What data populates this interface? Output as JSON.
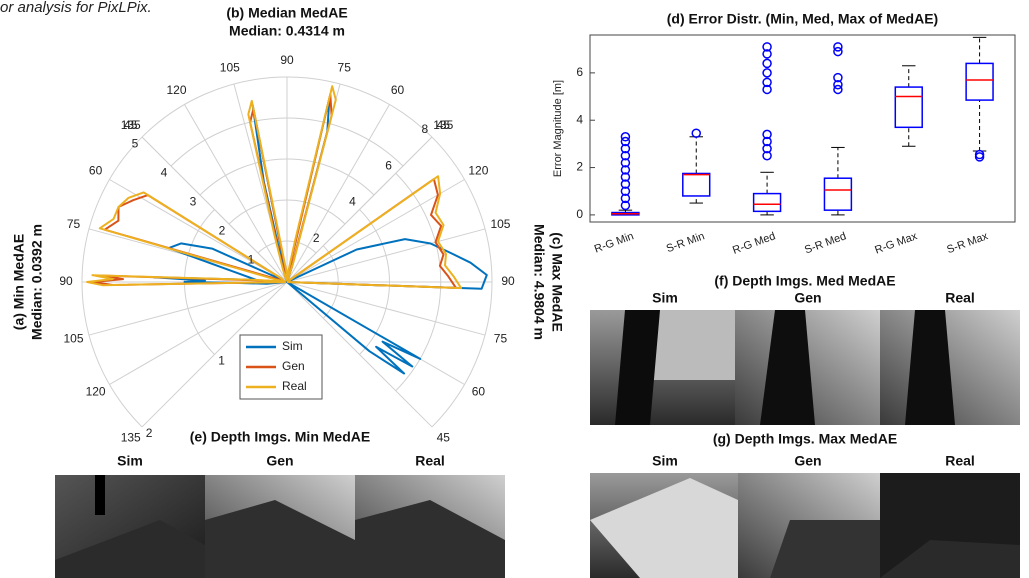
{
  "caption_fragment": "or analysis for PixLPix.",
  "chart_data": [
    {
      "type": "polar",
      "title": "(a) Min MedAE",
      "subtitle": "Median: 0.0392 m",
      "x": [
        45,
        55,
        58,
        62,
        66,
        70,
        74,
        78,
        82,
        86,
        88,
        89,
        90,
        91,
        95,
        105,
        120,
        135
      ],
      "xlim": [
        45,
        135
      ],
      "xticks": [
        45,
        60,
        75,
        90,
        105,
        120,
        135
      ],
      "ylim": [
        0,
        2
      ],
      "yticks": [
        0,
        1,
        2
      ],
      "series": [
        {
          "name": "Sim",
          "color": "#0072bd",
          "values": [
            0,
            0,
            0,
            0,
            0.8,
            1.1,
            1.2,
            0.6,
            0.4,
            0.3,
            1.3,
            0.8,
            1.0,
            0.5,
            0.2,
            0,
            0,
            0
          ]
        },
        {
          "name": "Gen",
          "color": "#d95319",
          "values": [
            0,
            0,
            1.6,
            1.7,
            1.8,
            1.75,
            1.85,
            0,
            0,
            0.2,
            1.8,
            1.6,
            1.9,
            1.7,
            0,
            0,
            0,
            0
          ]
        },
        {
          "name": "Real",
          "color": "#edb120",
          "values": [
            0,
            0,
            1.65,
            1.75,
            1.8,
            1.8,
            1.9,
            0.1,
            0,
            0.3,
            1.9,
            1.7,
            1.95,
            1.8,
            0,
            0,
            0,
            0
          ]
        }
      ]
    },
    {
      "type": "polar",
      "title": "(b) Median MedAE",
      "subtitle": "Median: 0.4314 m",
      "x": [
        45,
        55,
        65,
        72,
        75,
        77,
        79,
        82,
        86,
        90,
        94,
        98,
        101,
        103,
        105,
        108,
        115,
        125,
        135
      ],
      "xlim": [
        45,
        135
      ],
      "xticks": [
        45,
        60,
        75,
        90,
        105,
        120,
        135
      ],
      "ylim": [
        0,
        5
      ],
      "yticks": [
        0,
        1,
        2,
        3,
        4,
        5
      ],
      "series": [
        {
          "name": "Sim",
          "color": "#0072bd",
          "values": [
            0,
            0,
            0,
            0.4,
            3.8,
            4.6,
            0.8,
            0.2,
            0.1,
            0.2,
            0.2,
            0.3,
            4.4,
            2.5,
            0.3,
            0.1,
            0,
            0,
            0
          ]
        },
        {
          "name": "Gen",
          "color": "#d95319",
          "values": [
            0,
            0,
            0,
            0.3,
            4.2,
            4.7,
            0.5,
            0.1,
            0.1,
            0.1,
            0.2,
            0.4,
            4.3,
            4.0,
            0.8,
            0.2,
            0,
            0,
            0
          ]
        },
        {
          "name": "Real",
          "color": "#edb120",
          "values": [
            0,
            0,
            0,
            0.5,
            4.6,
            4.9,
            1.0,
            0.3,
            0.2,
            0.1,
            0.3,
            0.6,
            4.5,
            4.2,
            1.2,
            0.3,
            0,
            0,
            0
          ]
        }
      ]
    },
    {
      "type": "polar",
      "title": "(c) Max MedAE",
      "subtitle": "Median: 4.9804 m",
      "x": [
        45,
        50,
        52,
        54,
        56,
        58,
        60,
        65,
        80,
        88,
        92,
        96,
        100,
        105,
        110,
        115,
        120,
        125,
        130,
        135
      ],
      "xlim": [
        45,
        135
      ],
      "xticks": [
        45,
        60,
        75,
        90,
        105,
        120,
        135
      ],
      "ylim": [
        0,
        8
      ],
      "yticks": [
        0,
        2,
        4,
        6,
        8
      ],
      "series": [
        {
          "name": "Sim",
          "color": "#0072bd",
          "values": [
            0,
            4.2,
            5.8,
            4.3,
            5.9,
            4.4,
            6.0,
            0,
            0,
            7.6,
            7.8,
            7.2,
            6.5,
            5.8,
            4.9,
            3.0,
            0,
            0,
            0,
            0
          ]
        },
        {
          "name": "Gen",
          "color": "#d95319",
          "values": [
            0,
            0,
            0,
            0,
            0,
            0,
            0,
            0,
            0,
            6.6,
            6.3,
            6.0,
            6.2,
            6.0,
            6.4,
            6.2,
            6.8,
            7.0,
            0,
            0
          ]
        },
        {
          "name": "Real",
          "color": "#edb120",
          "values": [
            0,
            0,
            0,
            0,
            0,
            0,
            0,
            0,
            0,
            6.8,
            6.5,
            6.2,
            6.3,
            6.1,
            6.5,
            6.4,
            6.9,
            7.2,
            0,
            0
          ]
        }
      ]
    },
    {
      "type": "box",
      "title": "(d) Error Distr. (Min, Med, Max of MedAE)",
      "y_label": "Error Magnitude [m]",
      "categories": [
        "R-G Min",
        "S-R Min",
        "R-G Med",
        "S-R Med",
        "R-G Max",
        "S-R Max"
      ],
      "ylim": [
        -0.3,
        7.6
      ],
      "yticks": [
        0,
        2,
        4,
        6
      ],
      "box_color": "#0000ff",
      "median_color": "#ff0000",
      "stats": [
        {
          "min": 0,
          "q1": 0,
          "median": 0.05,
          "q3": 0.1,
          "max": 0.2,
          "outliers": [
            0.4,
            0.7,
            1.0,
            1.3,
            1.6,
            1.9,
            2.2,
            2.5,
            2.8,
            3.1,
            3.3
          ]
        },
        {
          "min": 0.5,
          "q1": 0.8,
          "median": 1.7,
          "q3": 1.75,
          "max": 3.3,
          "outliers": [
            3.45
          ]
        },
        {
          "min": 0,
          "q1": 0.15,
          "median": 0.45,
          "q3": 0.9,
          "max": 1.8,
          "outliers": [
            2.5,
            2.8,
            3.1,
            3.4,
            5.3,
            5.6,
            6.0,
            6.4,
            6.8,
            7.1
          ]
        },
        {
          "min": 0,
          "q1": 0.2,
          "median": 1.05,
          "q3": 1.55,
          "max": 2.85,
          "outliers": [
            5.3,
            5.5,
            5.8,
            6.9,
            7.1
          ]
        },
        {
          "min": 2.9,
          "q1": 3.7,
          "median": 5.0,
          "q3": 5.4,
          "max": 6.3,
          "outliers": []
        },
        {
          "min": 2.7,
          "q1": 4.85,
          "median": 5.7,
          "q3": 6.4,
          "max": 7.5,
          "outliers": [
            2.45,
            2.55
          ]
        }
      ]
    }
  ],
  "image_panels": [
    {
      "title": "(e) Depth Imgs. Min MedAE",
      "columns": [
        "Sim",
        "Gen",
        "Real"
      ]
    },
    {
      "title": "(f) Depth Imgs. Med MedAE",
      "columns": [
        "Sim",
        "Gen",
        "Real"
      ]
    },
    {
      "title": "(g) Depth Imgs. Max MedAE",
      "columns": [
        "Sim",
        "Gen",
        "Real"
      ]
    }
  ]
}
